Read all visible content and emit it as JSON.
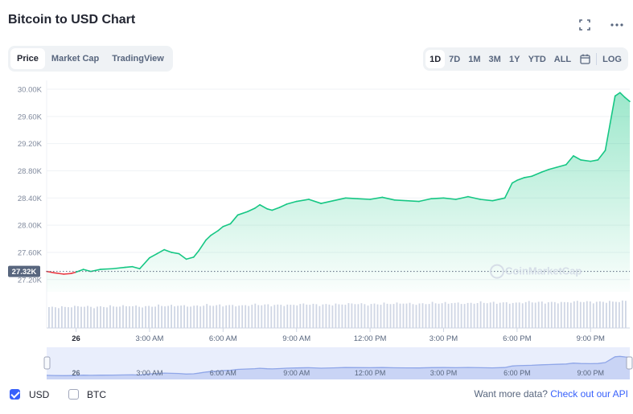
{
  "title": "Bitcoin to USD Chart",
  "header_icons": {
    "fullscreen": "fullscreen-icon",
    "more": "more-horizontal-icon"
  },
  "view_tabs": [
    {
      "label": "Price",
      "active": true
    },
    {
      "label": "Market Cap",
      "active": false
    },
    {
      "label": "TradingView",
      "active": false
    }
  ],
  "range_tabs": [
    {
      "label": "1D",
      "active": true
    },
    {
      "label": "7D",
      "active": false
    },
    {
      "label": "1M",
      "active": false
    },
    {
      "label": "3M",
      "active": false
    },
    {
      "label": "1Y",
      "active": false
    },
    {
      "label": "YTD",
      "active": false
    },
    {
      "label": "ALL",
      "active": false
    }
  ],
  "calendar_icon": "calendar-icon",
  "log_label": "LOG",
  "watermark": "CoinMarketCap",
  "colors": {
    "up": "#16c784",
    "down": "#ea3943",
    "accent": "#3861fb",
    "navigator": "#8fa6e8"
  },
  "chart_data": {
    "type": "area",
    "yticks": [
      "30.00K",
      "29.60K",
      "29.20K",
      "28.80K",
      "28.40K",
      "28.00K",
      "27.60K",
      "27.20K"
    ],
    "ytick_values": [
      30000,
      29600,
      29200,
      28800,
      28400,
      28000,
      27600,
      27200
    ],
    "ylim": [
      27020,
      30130
    ],
    "open_label": "27.32K",
    "open_value": 27320,
    "xlim": [
      -1.2,
      22.6
    ],
    "xticks": [
      "26",
      "3:00 AM",
      "6:00 AM",
      "9:00 AM",
      "12:00 PM",
      "3:00 PM",
      "6:00 PM",
      "9:00 PM"
    ],
    "xtick_values": [
      0,
      3,
      6,
      9,
      12,
      15,
      18,
      21
    ],
    "series": [
      {
        "x": [
          -1.2,
          -0.9,
          -0.5,
          -0.2,
          0.0,
          0.3,
          0.6,
          1.0,
          1.5,
          2.0,
          2.3,
          2.6,
          3.0,
          3.3,
          3.6,
          3.9,
          4.2,
          4.5,
          4.8,
          5.0,
          5.3,
          5.5,
          5.8,
          6.0,
          6.3,
          6.6,
          7.0,
          7.3,
          7.5,
          7.8,
          8.0,
          8.3,
          8.6,
          9.0,
          9.5,
          10.0,
          10.5,
          11.0,
          11.5,
          12.0,
          12.5,
          13.0,
          13.5,
          14.0,
          14.5,
          15.0,
          15.5,
          16.0,
          16.5,
          17.0,
          17.5,
          17.8,
          18.0,
          18.3,
          18.6,
          19.0,
          19.3,
          19.6,
          20.0,
          20.3,
          20.6,
          21.0,
          21.3,
          21.6,
          21.8,
          22.0,
          22.2,
          22.4,
          22.6
        ],
        "values": [
          27320,
          27300,
          27280,
          27290,
          27310,
          27350,
          27320,
          27350,
          27360,
          27380,
          27390,
          27360,
          27520,
          27580,
          27640,
          27600,
          27580,
          27500,
          27530,
          27620,
          27780,
          27850,
          27920,
          27980,
          28020,
          28150,
          28200,
          28250,
          28300,
          28240,
          28220,
          28260,
          28310,
          28350,
          28380,
          28320,
          28360,
          28400,
          28390,
          28380,
          28410,
          28370,
          28360,
          28350,
          28390,
          28400,
          28380,
          28420,
          28380,
          28360,
          28400,
          28620,
          28660,
          28700,
          28720,
          28780,
          28820,
          28850,
          28890,
          29020,
          28960,
          28940,
          28960,
          29100,
          29500,
          29900,
          29950,
          29880,
          29820
        ]
      }
    ],
    "grid": true,
    "navigator": true
  },
  "footer": {
    "usd_label": "USD",
    "btc_label": "BTC",
    "api_text": "Want more data?",
    "api_link": "Check out our API"
  }
}
